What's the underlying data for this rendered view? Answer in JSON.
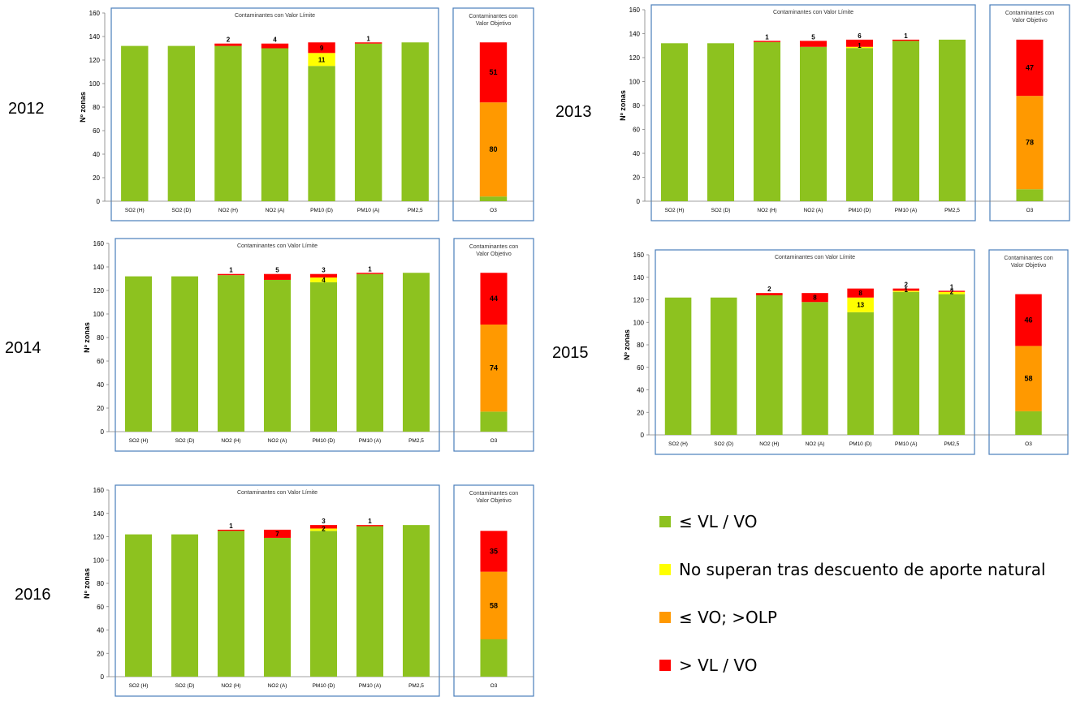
{
  "colors": {
    "green": "#8dc21f",
    "yellow": "#ffff00",
    "orange": "#ff9900",
    "red": "#ff0000",
    "frame": "#4a7ebb"
  },
  "legend": {
    "items": [
      {
        "label": "≤ VL / VO",
        "color": "#8dc21f"
      },
      {
        "label": "No superan tras descuento de aporte natural",
        "color": "#ffff00"
      },
      {
        "label": "≤ VO; >OLP",
        "color": "#ff9900"
      },
      {
        "label": "> VL / VO",
        "color": "#ff0000"
      }
    ]
  },
  "chart_data": [
    {
      "type": "bar",
      "stacked": true,
      "year": "2012",
      "ylabel": "Nº zonas",
      "ylim": [
        0,
        160
      ],
      "yticks": [
        0,
        20,
        40,
        60,
        80,
        100,
        120,
        140,
        160
      ],
      "group_limit_title": "Contaminantes con Valor Límite",
      "group_objective_title": "Contaminantes con Valor Objetivo",
      "categories": [
        "SO2 (H)",
        "SO2 (D)",
        "NO2 (H)",
        "NO2 (A)",
        "PM10 (D)",
        "PM10 (A)",
        "PM2,5",
        "O3"
      ],
      "series": [
        {
          "key": "green",
          "values": [
            132,
            132,
            132,
            130,
            115,
            134,
            135,
            4
          ]
        },
        {
          "key": "yellow",
          "values": [
            0,
            0,
            0,
            0,
            11,
            0,
            0,
            0
          ]
        },
        {
          "key": "orange",
          "values": [
            0,
            0,
            0,
            0,
            0,
            0,
            0,
            80
          ]
        },
        {
          "key": "red",
          "values": [
            0,
            0,
            2,
            4,
            9,
            1,
            0,
            51
          ]
        }
      ],
      "labels": [
        {
          "cat": 2,
          "series": "red",
          "text": "2"
        },
        {
          "cat": 3,
          "series": "red",
          "text": "4"
        },
        {
          "cat": 4,
          "series": "red",
          "text": "9"
        },
        {
          "cat": 4,
          "series": "yellow",
          "text": "11"
        },
        {
          "cat": 5,
          "series": "red",
          "text": "1"
        },
        {
          "cat": 7,
          "series": "orange",
          "text": "80"
        },
        {
          "cat": 7,
          "series": "red",
          "text": "51"
        }
      ]
    },
    {
      "type": "bar",
      "stacked": true,
      "year": "2013",
      "ylabel": "Nº zonas",
      "ylim": [
        0,
        160
      ],
      "yticks": [
        0,
        20,
        40,
        60,
        80,
        100,
        120,
        140,
        160
      ],
      "group_limit_title": "Contaminantes con Valor Límite",
      "group_objective_title": "Contaminantes con Valor Objetivo",
      "categories": [
        "SO2 (H)",
        "SO2 (D)",
        "NO2 (H)",
        "NO2 (A)",
        "PM10 (D)",
        "PM10 (A)",
        "PM2,5",
        "O3"
      ],
      "series": [
        {
          "key": "green",
          "values": [
            132,
            132,
            133,
            129,
            128,
            134,
            135,
            10
          ]
        },
        {
          "key": "yellow",
          "values": [
            0,
            0,
            0,
            0,
            1,
            0,
            0,
            0
          ]
        },
        {
          "key": "orange",
          "values": [
            0,
            0,
            0,
            0,
            0,
            0,
            0,
            78
          ]
        },
        {
          "key": "red",
          "values": [
            0,
            0,
            1,
            5,
            6,
            1,
            0,
            47
          ]
        }
      ],
      "labels": [
        {
          "cat": 2,
          "series": "red",
          "text": "1"
        },
        {
          "cat": 3,
          "series": "red",
          "text": "5"
        },
        {
          "cat": 4,
          "series": "red",
          "text": "6"
        },
        {
          "cat": 4,
          "series": "yellow",
          "text": "1"
        },
        {
          "cat": 5,
          "series": "red",
          "text": "1"
        },
        {
          "cat": 7,
          "series": "orange",
          "text": "78"
        },
        {
          "cat": 7,
          "series": "red",
          "text": "47"
        }
      ]
    },
    {
      "type": "bar",
      "stacked": true,
      "year": "2014",
      "ylabel": "Nº zonas",
      "ylim": [
        0,
        160
      ],
      "yticks": [
        0,
        20,
        40,
        60,
        80,
        100,
        120,
        140,
        160
      ],
      "group_limit_title": "Contaminantes con Valor Límite",
      "group_objective_title": "Contaminantes con Valor Objetivo",
      "categories": [
        "SO2 (H)",
        "SO2 (D)",
        "NO2 (H)",
        "NO2 (A)",
        "PM10 (D)",
        "PM10 (A)",
        "PM2,5",
        "O3"
      ],
      "series": [
        {
          "key": "green",
          "values": [
            132,
            132,
            133,
            129,
            127,
            134,
            135,
            17
          ]
        },
        {
          "key": "yellow",
          "values": [
            0,
            0,
            0,
            0,
            4,
            0,
            0,
            0
          ]
        },
        {
          "key": "orange",
          "values": [
            0,
            0,
            0,
            0,
            0,
            0,
            0,
            74
          ]
        },
        {
          "key": "red",
          "values": [
            0,
            0,
            1,
            5,
            3,
            1,
            0,
            44
          ]
        }
      ],
      "labels": [
        {
          "cat": 2,
          "series": "red",
          "text": "1"
        },
        {
          "cat": 3,
          "series": "red",
          "text": "5"
        },
        {
          "cat": 4,
          "series": "red",
          "text": "3"
        },
        {
          "cat": 4,
          "series": "yellow",
          "text": "4"
        },
        {
          "cat": 5,
          "series": "red",
          "text": "1"
        },
        {
          "cat": 7,
          "series": "orange",
          "text": "74"
        },
        {
          "cat": 7,
          "series": "red",
          "text": "44"
        }
      ]
    },
    {
      "type": "bar",
      "stacked": true,
      "year": "2015",
      "ylabel": "Nº zonas",
      "ylim": [
        0,
        160
      ],
      "yticks": [
        0,
        20,
        40,
        60,
        80,
        100,
        120,
        140,
        160
      ],
      "group_limit_title": "Contaminantes con Valor Límite",
      "group_objective_title": "Contaminantes con Valor Objetivo",
      "categories": [
        "SO2 (H)",
        "SO2 (D)",
        "NO2 (H)",
        "NO2 (A)",
        "PM10 (D)",
        "PM10 (A)",
        "PM2,5",
        "O3"
      ],
      "series": [
        {
          "key": "green",
          "values": [
            122,
            122,
            124,
            118,
            109,
            127,
            125,
            21
          ]
        },
        {
          "key": "yellow",
          "values": [
            0,
            0,
            0,
            0,
            13,
            1,
            2,
            0
          ]
        },
        {
          "key": "orange",
          "values": [
            0,
            0,
            0,
            0,
            0,
            0,
            0,
            58
          ]
        },
        {
          "key": "red",
          "values": [
            0,
            0,
            2,
            8,
            8,
            2,
            1,
            46
          ]
        }
      ],
      "labels": [
        {
          "cat": 2,
          "series": "red",
          "text": "2"
        },
        {
          "cat": 3,
          "series": "red",
          "text": "8"
        },
        {
          "cat": 4,
          "series": "red",
          "text": "8"
        },
        {
          "cat": 4,
          "series": "yellow",
          "text": "13"
        },
        {
          "cat": 5,
          "series": "red",
          "text": "2"
        },
        {
          "cat": 5,
          "series": "yellow",
          "text": "1"
        },
        {
          "cat": 6,
          "series": "red",
          "text": "1"
        },
        {
          "cat": 6,
          "series": "yellow",
          "text": "2"
        },
        {
          "cat": 7,
          "series": "orange",
          "text": "58"
        },
        {
          "cat": 7,
          "series": "red",
          "text": "46"
        }
      ]
    },
    {
      "type": "bar",
      "stacked": true,
      "year": "2016",
      "ylabel": "Nº zonas",
      "ylim": [
        0,
        160
      ],
      "yticks": [
        0,
        20,
        40,
        60,
        80,
        100,
        120,
        140,
        160
      ],
      "group_limit_title": "Contaminantes con Valor Límite",
      "group_objective_title": "Contaminantes con Valor Objetivo",
      "categories": [
        "SO2 (H)",
        "SO2 (D)",
        "NO2 (H)",
        "NO2 (A)",
        "PM10 (D)",
        "PM10 (A)",
        "PM2,5",
        "O3"
      ],
      "series": [
        {
          "key": "green",
          "values": [
            122,
            122,
            125,
            119,
            125,
            129,
            130,
            32
          ]
        },
        {
          "key": "yellow",
          "values": [
            0,
            0,
            0,
            0,
            2,
            0,
            0,
            0
          ]
        },
        {
          "key": "orange",
          "values": [
            0,
            0,
            0,
            0,
            0,
            0,
            0,
            58
          ]
        },
        {
          "key": "red",
          "values": [
            0,
            0,
            1,
            7,
            3,
            1,
            0,
            35
          ]
        }
      ],
      "labels": [
        {
          "cat": 2,
          "series": "red",
          "text": "1"
        },
        {
          "cat": 3,
          "series": "red",
          "text": "7"
        },
        {
          "cat": 4,
          "series": "red",
          "text": "3"
        },
        {
          "cat": 4,
          "series": "yellow",
          "text": "2"
        },
        {
          "cat": 5,
          "series": "red",
          "text": "1"
        },
        {
          "cat": 7,
          "series": "orange",
          "text": "58"
        },
        {
          "cat": 7,
          "series": "red",
          "text": "35"
        }
      ]
    }
  ]
}
